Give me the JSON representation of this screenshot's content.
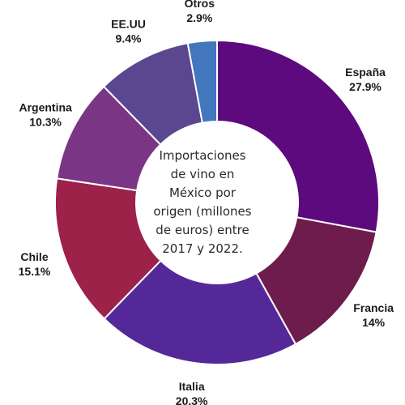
{
  "chart_data": {
    "type": "pie",
    "title": "Importaciones de vino en México por origen (millones de euros) entre 2017 y 2022.",
    "series": [
      {
        "name": "España",
        "value": 27.9,
        "display": "27.9%",
        "color": "#5c0a7e"
      },
      {
        "name": "Francia",
        "value": 14,
        "display": "14%",
        "color": "#6e1c4c"
      },
      {
        "name": "Italia",
        "value": 20.3,
        "display": "20.3%",
        "color": "#55289a"
      },
      {
        "name": "Chile",
        "value": 15.1,
        "display": "15.1%",
        "color": "#9c224a"
      },
      {
        "name": "Argentina",
        "value": 10.3,
        "display": "10.3%",
        "color": "#7a3585"
      },
      {
        "name": "EE.UU",
        "value": 9.4,
        "display": "9.4%",
        "color": "#5a4790"
      },
      {
        "name": "Otros",
        "value": 2.9,
        "display": "2.9%",
        "color": "#4276bd"
      }
    ]
  }
}
